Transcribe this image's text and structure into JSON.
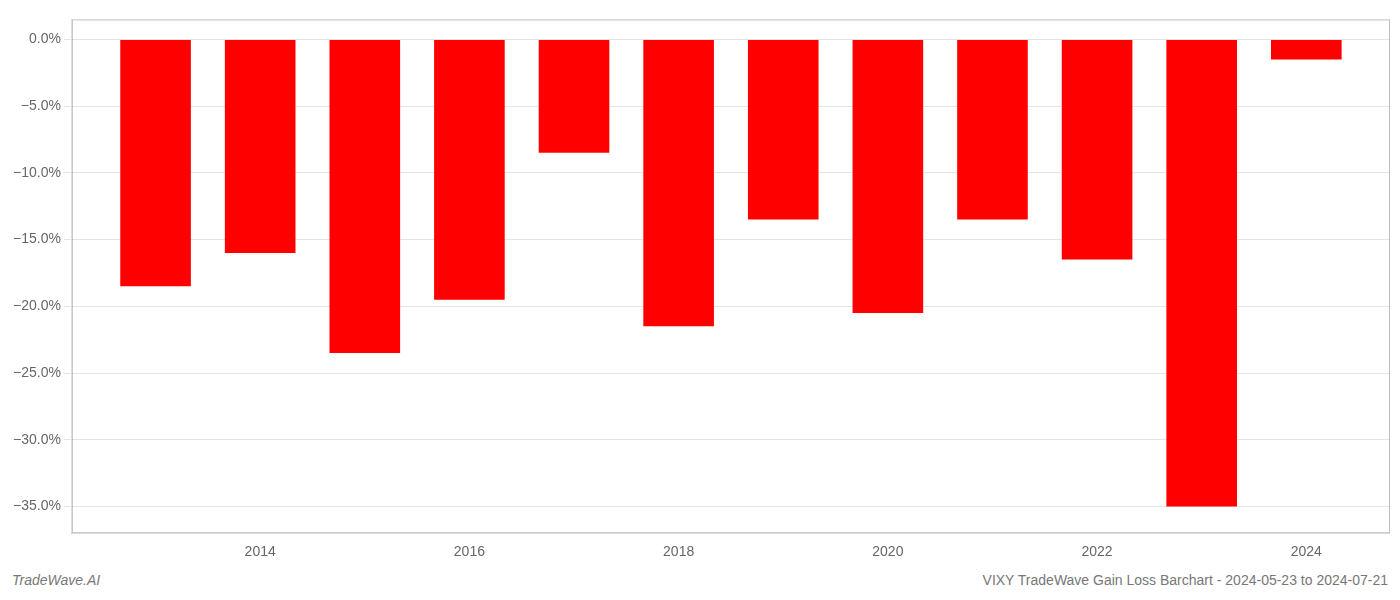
{
  "chart_data": {
    "type": "bar",
    "x": [
      2013,
      2014,
      2015,
      2016,
      2017,
      2018,
      2019,
      2020,
      2021,
      2022,
      2023,
      2024
    ],
    "values": [
      -18.5,
      -16.0,
      -23.5,
      -19.5,
      -8.5,
      -21.5,
      -13.5,
      -20.5,
      -13.5,
      -16.5,
      -35.0,
      -1.5
    ],
    "color": "#ff0000",
    "xlim": [
      2012.2,
      2024.8
    ],
    "xticks": [
      2014,
      2016,
      2018,
      2020,
      2022,
      2024
    ],
    "ylim": [
      -37,
      1.5
    ],
    "yticks": [
      {
        "value": 0.0,
        "label": "0.0%"
      },
      {
        "value": -5.0,
        "label": "−5.0%"
      },
      {
        "value": -10.0,
        "label": "−10.0%"
      },
      {
        "value": -15.0,
        "label": "−15.0%"
      },
      {
        "value": -20.0,
        "label": "−20.0%"
      },
      {
        "value": -25.0,
        "label": "−25.0%"
      },
      {
        "value": -30.0,
        "label": "−30.0%"
      },
      {
        "value": -35.0,
        "label": "−35.0%"
      }
    ],
    "grid": "y",
    "annotations": [
      "TradeWave.AI",
      "VIXY TradeWave Gain Loss Barchart - 2024-05-23 to 2024-07-21"
    ]
  }
}
